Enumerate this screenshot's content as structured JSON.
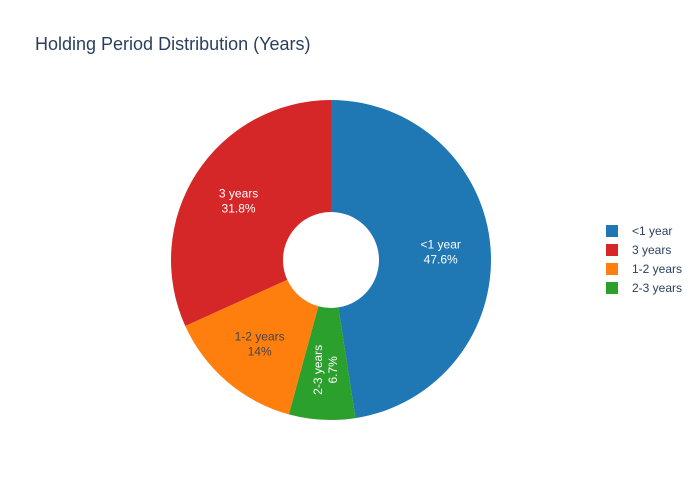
{
  "chart_data": {
    "type": "pie",
    "hole": true,
    "title": "Holding Period Distribution (Years)",
    "legend_position": "right",
    "slices": [
      {
        "label": "<1 year",
        "value": 47.6,
        "text": "47.6%",
        "color": "#1f77b4",
        "text_color": "#ffffff"
      },
      {
        "label": "2-3 years",
        "value": 6.7,
        "text": "6.7%",
        "color": "#2ca02c",
        "text_color": "#ffffff"
      },
      {
        "label": "1-2 years",
        "value": 14,
        "text": "14%",
        "color": "#ff7f0e",
        "text_color": "#444444"
      },
      {
        "label": "3 years",
        "value": 31.8,
        "text": "31.8%",
        "color": "#d62728",
        "text_color": "#ffffff"
      }
    ],
    "legend_order": [
      "<1 year",
      "3 years",
      "1-2 years",
      "2-3 years"
    ]
  }
}
